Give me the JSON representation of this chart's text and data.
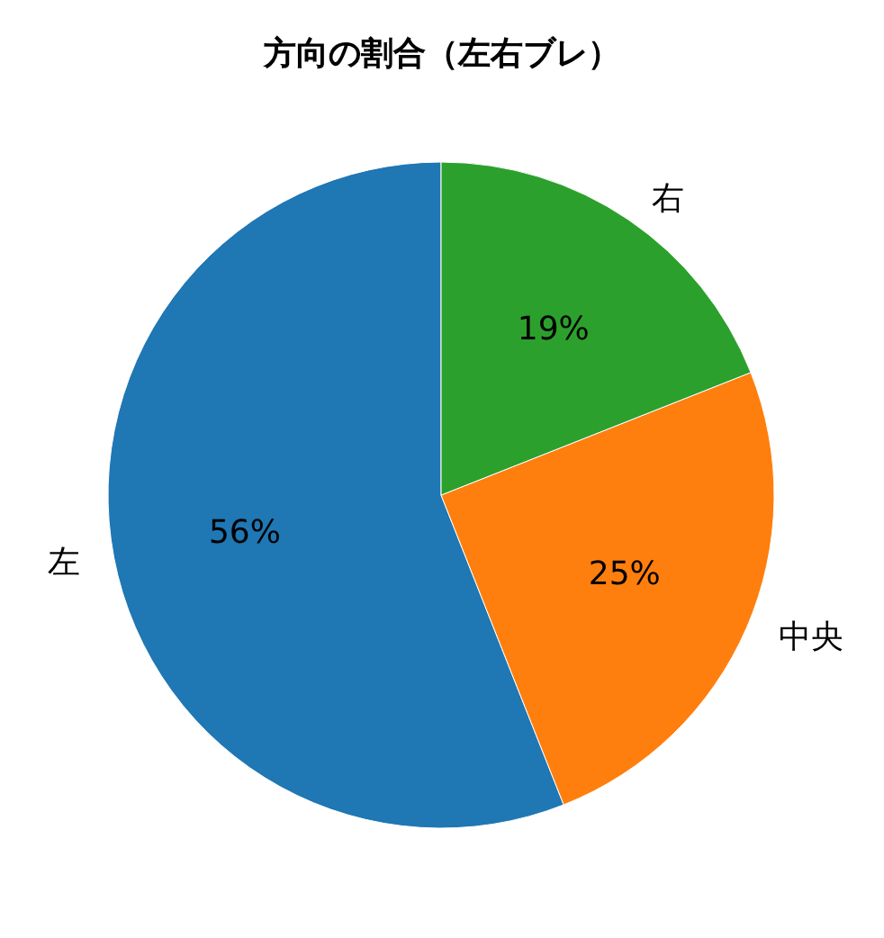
{
  "chart_data": {
    "type": "pie",
    "title": "方向の割合（左右ブレ）",
    "categories": [
      "左",
      "中央",
      "右"
    ],
    "values": [
      56,
      25,
      19
    ],
    "colors": [
      "#1f77b4",
      "#ff7f0e",
      "#2ca02c"
    ],
    "value_labels": [
      "56%",
      "25%",
      "19%"
    ]
  }
}
